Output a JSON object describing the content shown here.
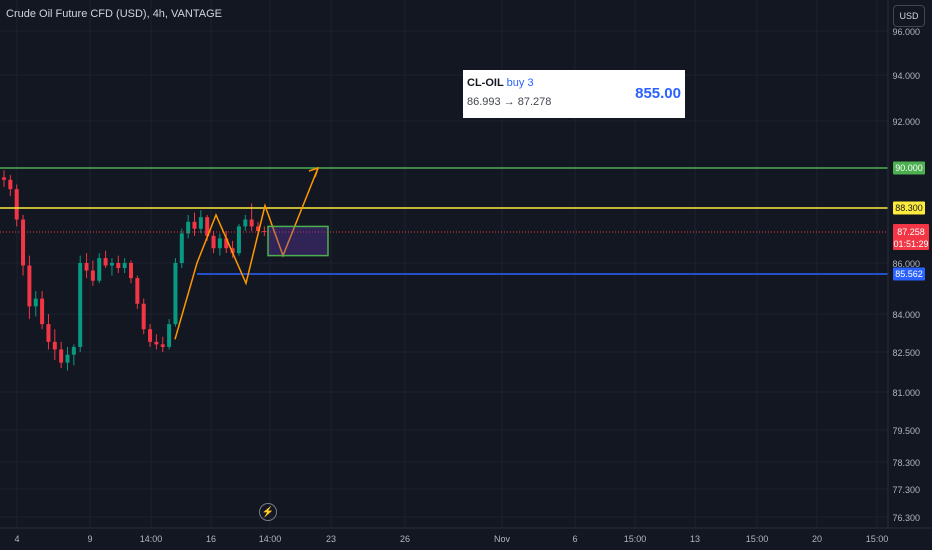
{
  "header": {
    "title": "Crude Oil Future CFD (USD), 4h, VANTAGE",
    "currency_label": "USD"
  },
  "trade_box": {
    "symbol": "CL-OIL",
    "action": "buy 3",
    "range": "86.993 → 87.278",
    "pnl": "855.00"
  },
  "icons": {
    "events": "lightning-icon"
  },
  "chart_data": {
    "type": "candlestick",
    "title": "Crude Oil Future CFD (USD), 4h, VANTAGE",
    "ylim": [
      76.0,
      96.0
    ],
    "y_ticks": [
      {
        "label": "96.000",
        "value": 96.0
      },
      {
        "label": "94.000",
        "value": 94.0
      },
      {
        "label": "92.000",
        "value": 92.0
      },
      {
        "label": "86.000",
        "value": 86.0
      },
      {
        "label": "84.000",
        "value": 84.0
      },
      {
        "label": "82.500",
        "value": 82.5
      },
      {
        "label": "81.000",
        "value": 81.0
      },
      {
        "label": "79.500",
        "value": 79.5
      },
      {
        "label": "78.300",
        "value": 78.3
      },
      {
        "label": "77.300",
        "value": 77.3
      },
      {
        "label": "76.300",
        "value": 76.3
      }
    ],
    "x_ticks": [
      "4",
      "9",
      "14:00",
      "16",
      "14:00",
      "23",
      "26",
      "Nov",
      "6",
      "15:00",
      "13",
      "15:00",
      "20",
      "15:00"
    ],
    "levels": [
      {
        "label": "90.000",
        "value": 90.0,
        "color": "#4caf50"
      },
      {
        "label": "88.300",
        "value": 88.3,
        "color": "#ffeb3b"
      },
      {
        "label": "85.562",
        "value": 85.562,
        "color": "#2962ff"
      }
    ],
    "current_price": {
      "label": "87.258",
      "value": 87.258,
      "countdown": "01:51:29",
      "color": "#f23645"
    },
    "ohlc": [
      [
        89.6,
        89.9,
        89.2,
        89.5
      ],
      [
        89.5,
        89.7,
        88.8,
        89.1
      ],
      [
        89.1,
        89.3,
        87.5,
        87.8
      ],
      [
        87.8,
        88.0,
        85.5,
        85.9
      ],
      [
        85.9,
        86.3,
        83.8,
        84.3
      ],
      [
        84.3,
        84.9,
        83.9,
        84.6
      ],
      [
        84.6,
        84.9,
        83.4,
        83.6
      ],
      [
        83.6,
        84.0,
        82.6,
        82.9
      ],
      [
        82.9,
        83.4,
        82.2,
        82.6
      ],
      [
        82.6,
        82.9,
        81.9,
        82.1
      ],
      [
        82.1,
        82.7,
        81.8,
        82.4
      ],
      [
        82.4,
        82.8,
        82.0,
        82.7
      ],
      [
        82.7,
        86.3,
        82.5,
        86.0
      ],
      [
        86.0,
        86.4,
        85.4,
        85.7
      ],
      [
        85.7,
        86.1,
        85.1,
        85.3
      ],
      [
        85.3,
        86.4,
        85.2,
        86.2
      ],
      [
        86.2,
        86.5,
        85.8,
        85.9
      ],
      [
        85.9,
        86.2,
        85.5,
        86.0
      ],
      [
        86.0,
        86.3,
        85.6,
        85.8
      ],
      [
        85.8,
        86.2,
        85.6,
        86.0
      ],
      [
        86.0,
        86.1,
        85.2,
        85.4
      ],
      [
        85.4,
        85.5,
        84.2,
        84.4
      ],
      [
        84.4,
        84.6,
        83.2,
        83.4
      ],
      [
        83.4,
        83.6,
        82.7,
        82.9
      ],
      [
        82.9,
        83.2,
        82.6,
        82.8
      ],
      [
        82.8,
        83.1,
        82.5,
        82.7
      ],
      [
        82.7,
        83.8,
        82.6,
        83.6
      ],
      [
        83.6,
        86.2,
        83.5,
        86.0
      ],
      [
        86.0,
        87.4,
        85.8,
        87.2
      ],
      [
        87.2,
        88.0,
        87.0,
        87.7
      ],
      [
        87.7,
        88.1,
        87.1,
        87.4
      ],
      [
        87.4,
        88.2,
        87.2,
        87.9
      ],
      [
        87.9,
        88.0,
        86.9,
        87.1
      ],
      [
        87.1,
        87.3,
        86.4,
        86.6
      ],
      [
        86.6,
        87.2,
        86.3,
        87.0
      ],
      [
        87.0,
        87.3,
        86.4,
        86.6
      ],
      [
        86.6,
        86.9,
        86.2,
        86.4
      ],
      [
        86.4,
        87.6,
        86.3,
        87.5
      ],
      [
        87.5,
        88.0,
        87.3,
        87.8
      ],
      [
        87.8,
        88.5,
        87.3,
        87.5
      ],
      [
        87.5,
        87.7,
        87.1,
        87.3
      ],
      [
        87.3,
        87.5,
        87.1,
        87.258
      ]
    ]
  }
}
